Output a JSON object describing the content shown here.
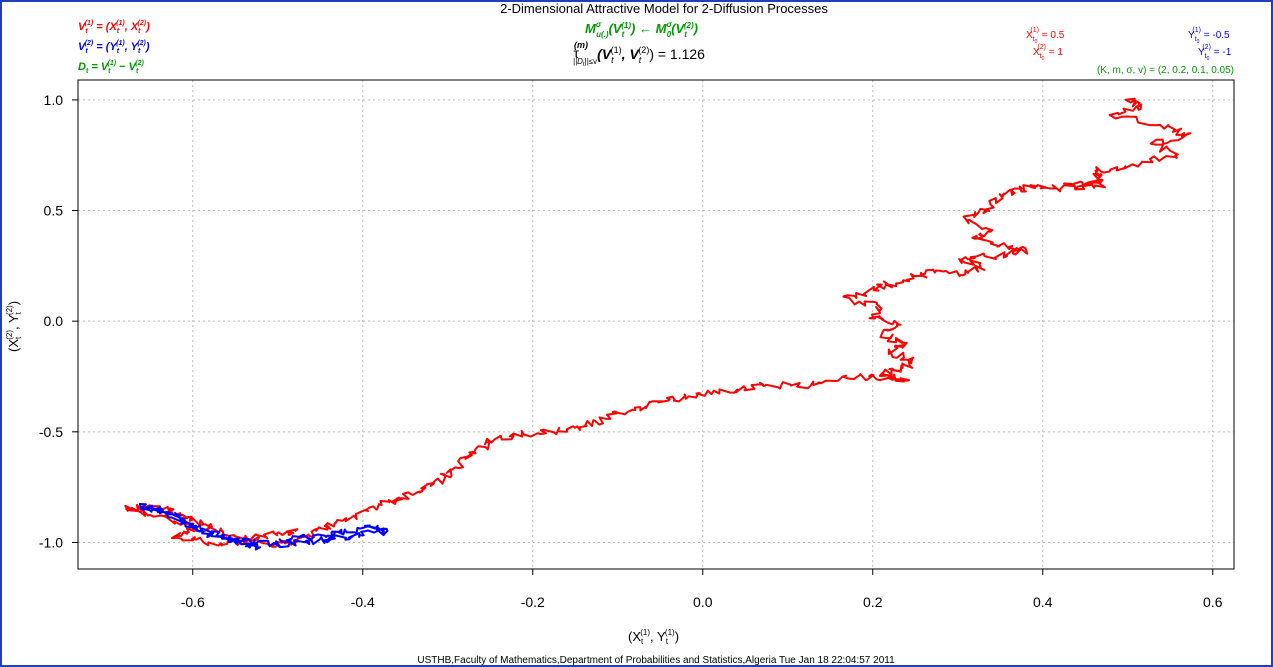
{
  "chart_data": {
    "type": "line",
    "title": "2-Dimensional Attractive Model for 2-Diffusion Processes",
    "subtitle_model": "M^σ_u(.)(V_t^(1)) ← M^σ_0(V_t^(2))",
    "subtitle_tau": "τ^(m)_||D_t||≤v (V_t^(1), V_t^(2)) = 1.126",
    "xlabel": "(X_t^(1), Y_t^(1))",
    "ylabel": "(X_t^(2), Y_t^(2))",
    "xlim": [
      -0.735,
      0.625
    ],
    "ylim": [
      -1.12,
      1.09
    ],
    "xticks": [
      "-0.6",
      "-0.4",
      "-0.2",
      "0.0",
      "0.2",
      "0.4",
      "0.6"
    ],
    "xtick_values": [
      -0.6,
      -0.4,
      -0.2,
      0.0,
      0.2,
      0.4,
      0.6
    ],
    "yticks": [
      "1.0",
      "0.5",
      "0.0",
      "-0.5",
      "-1.0"
    ],
    "ytick_values": [
      1.0,
      0.5,
      0.0,
      -0.5,
      -1.0
    ],
    "grid": true,
    "legend": [
      {
        "text": "V_t^(1) = (X_t^(1), X_t^(2))",
        "color": "#ff0000"
      },
      {
        "text": "V_t^(2) = (Y_t^(1), Y_t^(2))",
        "color": "#0000ff"
      },
      {
        "text": "D_t = V_t^(1) − V_t^(2)",
        "color": "#009900"
      }
    ],
    "annotations": {
      "x_init": [
        "X_t0^(1) = 0.5",
        "X_t0^(2) = 1"
      ],
      "y_init": [
        "Y_t0^(1) = -0.5",
        "Y_t0^(2) = -1"
      ],
      "params": "(K, m, σ, v) = (2, 0.2, 0.1, 0.05)"
    },
    "footer": "USTHB,Faculty of Mathematics,Department of Probabilities and Statistics,Algeria Tue Jan 18 22:04:57 2011",
    "series": [
      {
        "color": "#ff0000",
        "x": [
          0.5,
          0.52,
          0.48,
          0.55,
          0.57,
          0.53,
          0.56,
          0.5,
          0.46,
          0.47,
          0.43,
          0.47,
          0.42,
          0.39,
          0.37,
          0.35,
          0.33,
          0.31,
          0.34,
          0.32,
          0.36,
          0.38,
          0.35,
          0.3,
          0.33,
          0.3,
          0.27,
          0.25,
          0.22,
          0.2,
          0.17,
          0.21,
          0.2,
          0.23,
          0.21,
          0.24,
          0.22,
          0.25,
          0.23,
          0.21,
          0.24,
          0.2,
          0.16,
          0.12,
          0.08,
          0.04,
          0.0,
          -0.03,
          -0.06,
          -0.09,
          -0.12,
          -0.15,
          -0.18,
          -0.21,
          -0.25,
          -0.27,
          -0.29,
          -0.31,
          -0.33,
          -0.36,
          -0.38,
          -0.41,
          -0.44,
          -0.46,
          -0.48,
          -0.5,
          -0.52,
          -0.55,
          -0.58,
          -0.6,
          -0.62,
          -0.65,
          -0.68,
          -0.64,
          -0.6,
          -0.62,
          -0.58,
          -0.55,
          -0.53,
          -0.5,
          -0.48
        ],
        "y": [
          1.0,
          0.97,
          0.93,
          0.88,
          0.84,
          0.8,
          0.75,
          0.7,
          0.68,
          0.64,
          0.61,
          0.62,
          0.6,
          0.61,
          0.59,
          0.56,
          0.5,
          0.46,
          0.41,
          0.37,
          0.33,
          0.32,
          0.3,
          0.28,
          0.25,
          0.21,
          0.22,
          0.2,
          0.17,
          0.14,
          0.1,
          0.06,
          0.02,
          -0.02,
          -0.06,
          -0.1,
          -0.14,
          -0.18,
          -0.22,
          -0.24,
          -0.26,
          -0.25,
          -0.25,
          -0.29,
          -0.29,
          -0.31,
          -0.33,
          -0.35,
          -0.38,
          -0.41,
          -0.45,
          -0.48,
          -0.5,
          -0.51,
          -0.54,
          -0.6,
          -0.66,
          -0.72,
          -0.76,
          -0.8,
          -0.84,
          -0.88,
          -0.93,
          -0.96,
          -1.0,
          -1.01,
          -0.99,
          -0.98,
          -0.94,
          -0.9,
          -0.86,
          -0.84,
          -0.85,
          -0.88,
          -0.93,
          -0.97,
          -1.0,
          -1.0,
          -0.98,
          -0.96,
          -0.95
        ]
      },
      {
        "color": "#0000ff",
        "x": [
          -0.5,
          -0.47,
          -0.44,
          -0.42,
          -0.39,
          -0.37,
          -0.4,
          -0.43,
          -0.45,
          -0.47,
          -0.5,
          -0.53,
          -0.55,
          -0.58,
          -0.6,
          -0.62,
          -0.64,
          -0.66,
          -0.63,
          -0.61,
          -0.59,
          -0.56,
          -0.54,
          -0.52
        ],
        "y": [
          -1.0,
          -0.98,
          -0.97,
          -0.95,
          -0.93,
          -0.95,
          -0.96,
          -0.98,
          -0.99,
          -1.0,
          -1.01,
          -1.0,
          -0.99,
          -0.97,
          -0.93,
          -0.89,
          -0.86,
          -0.84,
          -0.86,
          -0.9,
          -0.94,
          -0.98,
          -1.0,
          -1.02
        ]
      }
    ]
  }
}
